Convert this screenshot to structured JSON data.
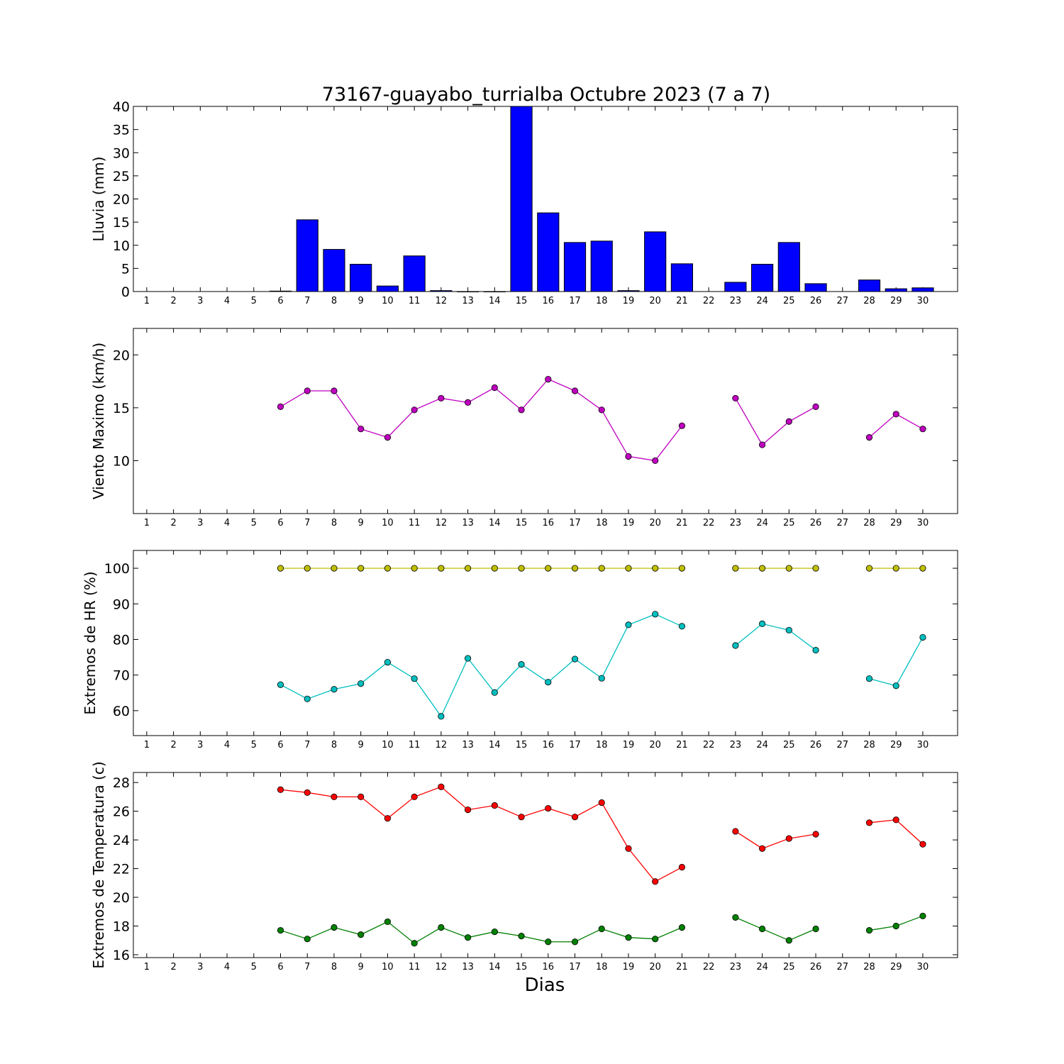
{
  "figure": {
    "title": "73167-guayabo_turrialba Octubre 2023  (7 a 7)",
    "xlabel": "Dias"
  },
  "chart_data": [
    {
      "type": "bar",
      "ylabel": "Lluvia (mm)",
      "ylim": [
        0,
        40
      ],
      "yticks": [
        0,
        5,
        10,
        15,
        20,
        25,
        30,
        35,
        40
      ],
      "color": "#0000ff",
      "categories": [
        1,
        2,
        3,
        4,
        5,
        6,
        7,
        8,
        9,
        10,
        11,
        12,
        13,
        14,
        15,
        16,
        17,
        18,
        19,
        20,
        21,
        22,
        23,
        24,
        25,
        26,
        27,
        28,
        29,
        30
      ],
      "values": [
        null,
        null,
        null,
        null,
        null,
        0.1,
        15.5,
        9.1,
        5.9,
        1.2,
        7.7,
        0.2,
        0,
        0,
        40,
        17.0,
        10.6,
        10.9,
        0.2,
        12.9,
        6.0,
        null,
        2.0,
        5.9,
        10.6,
        1.7,
        null,
        2.5,
        0.6,
        0.8
      ]
    },
    {
      "type": "line",
      "ylabel": "Viento Maximo (km/h)",
      "ylim": [
        5,
        22.5
      ],
      "yticks": [
        10,
        15,
        20
      ],
      "x": [
        1,
        2,
        3,
        4,
        5,
        6,
        7,
        8,
        9,
        10,
        11,
        12,
        13,
        14,
        15,
        16,
        17,
        18,
        19,
        20,
        21,
        22,
        23,
        24,
        25,
        26,
        27,
        28,
        29,
        30
      ],
      "series": [
        {
          "color": "#bf00bf",
          "values": [
            null,
            null,
            null,
            null,
            null,
            15.1,
            16.6,
            16.6,
            13.0,
            12.2,
            14.8,
            15.9,
            15.5,
            16.9,
            14.8,
            17.7,
            16.6,
            14.8,
            10.4,
            10.0,
            13.3,
            null,
            15.9,
            11.5,
            13.7,
            15.1,
            null,
            12.2,
            14.4,
            13.0
          ]
        }
      ]
    },
    {
      "type": "line",
      "ylabel": "Extremos de HR (%)",
      "ylim": [
        53,
        105
      ],
      "yticks": [
        60,
        70,
        80,
        90,
        100
      ],
      "x": [
        1,
        2,
        3,
        4,
        5,
        6,
        7,
        8,
        9,
        10,
        11,
        12,
        13,
        14,
        15,
        16,
        17,
        18,
        19,
        20,
        21,
        22,
        23,
        24,
        25,
        26,
        27,
        28,
        29,
        30
      ],
      "series": [
        {
          "color": "#bfbf00",
          "values": [
            null,
            null,
            null,
            null,
            null,
            100,
            100,
            100,
            100,
            100,
            100,
            100,
            100,
            100,
            100,
            100,
            100,
            100,
            100,
            100,
            100,
            null,
            100,
            100,
            100,
            100,
            null,
            100,
            100,
            100
          ]
        },
        {
          "color": "#00bfbf",
          "values": [
            null,
            null,
            null,
            null,
            null,
            67.3,
            63.3,
            66.0,
            67.6,
            73.6,
            69.0,
            58.4,
            74.7,
            65.1,
            73.0,
            68.0,
            74.5,
            69.1,
            84.1,
            87.1,
            83.7,
            null,
            78.3,
            84.4,
            82.6,
            77.0,
            null,
            69.0,
            67.0,
            80.6
          ]
        }
      ]
    },
    {
      "type": "line",
      "ylabel": "Extremos de Temperatura (c)",
      "ylim": [
        15.8,
        28.7
      ],
      "yticks": [
        16,
        18,
        20,
        22,
        24,
        26,
        28
      ],
      "x": [
        1,
        2,
        3,
        4,
        5,
        6,
        7,
        8,
        9,
        10,
        11,
        12,
        13,
        14,
        15,
        16,
        17,
        18,
        19,
        20,
        21,
        22,
        23,
        24,
        25,
        26,
        27,
        28,
        29,
        30
      ],
      "series": [
        {
          "color": "#ff0000",
          "values": [
            null,
            null,
            null,
            null,
            null,
            27.5,
            27.3,
            27.0,
            27.0,
            25.5,
            27.0,
            27.7,
            26.1,
            26.4,
            25.6,
            26.2,
            25.6,
            26.6,
            23.4,
            21.1,
            22.1,
            null,
            24.6,
            23.4,
            24.1,
            24.4,
            null,
            25.2,
            25.4,
            23.7
          ]
        },
        {
          "color": "#008000",
          "values": [
            null,
            null,
            null,
            null,
            null,
            17.7,
            17.1,
            17.9,
            17.4,
            18.3,
            16.8,
            17.9,
            17.2,
            17.6,
            17.3,
            16.9,
            16.9,
            17.8,
            17.2,
            17.1,
            17.9,
            null,
            18.6,
            17.8,
            17.0,
            17.8,
            null,
            17.7,
            18.0,
            18.7
          ]
        }
      ]
    }
  ]
}
